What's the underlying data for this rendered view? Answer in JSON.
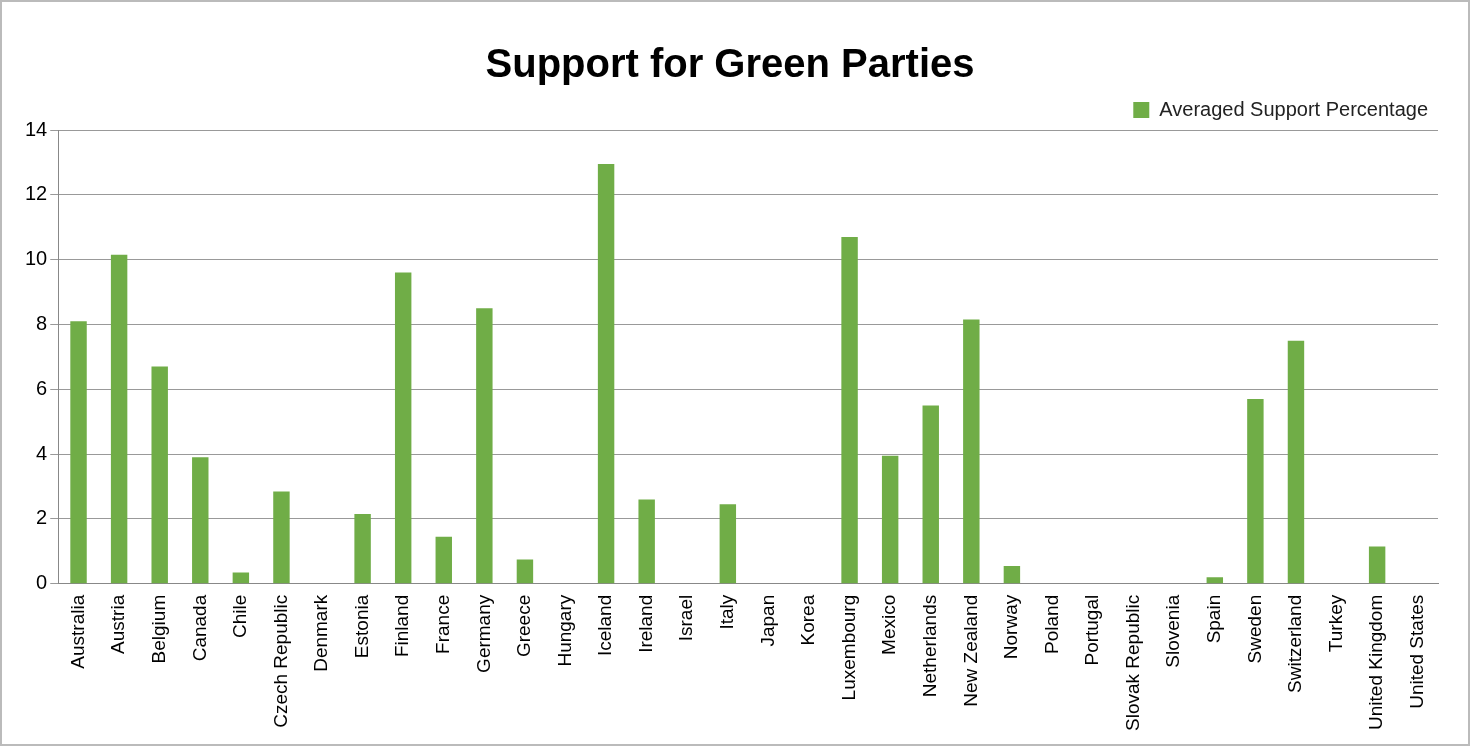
{
  "chart_data": {
    "type": "bar",
    "title": "Support for Green Parties",
    "categories": [
      "Australia",
      "Austria",
      "Belgium",
      "Canada",
      "Chile",
      "Czech Republic",
      "Denmark",
      "Estonia",
      "Finland",
      "France",
      "Germany",
      "Greece",
      "Hungary",
      "Iceland",
      "Ireland",
      "Israel",
      "Italy",
      "Japan",
      "Korea",
      "Luxembourg",
      "Mexico",
      "Netherlands",
      "New Zealand",
      "Norway",
      "Poland",
      "Portugal",
      "Slovak Republic",
      "Slovenia",
      "Spain",
      "Sweden",
      "Switzerland",
      "Turkey",
      "United Kingdom",
      "United States"
    ],
    "series": [
      {
        "name": "Averaged Support Percentage",
        "color": "#70ad47",
        "values": [
          8.1,
          10.15,
          6.7,
          3.9,
          0.35,
          2.85,
          0,
          2.15,
          9.6,
          1.45,
          8.5,
          0.75,
          0,
          12.95,
          2.6,
          0,
          2.45,
          0,
          0,
          10.7,
          3.95,
          5.5,
          8.15,
          0.55,
          0,
          0,
          0,
          0,
          0.2,
          5.7,
          7.5,
          0,
          1.15,
          0
        ]
      }
    ],
    "ylim": [
      0,
      14
    ],
    "yticks": [
      0,
      2,
      4,
      6,
      8,
      10,
      12,
      14
    ],
    "grid": "y",
    "legend": "top right"
  }
}
